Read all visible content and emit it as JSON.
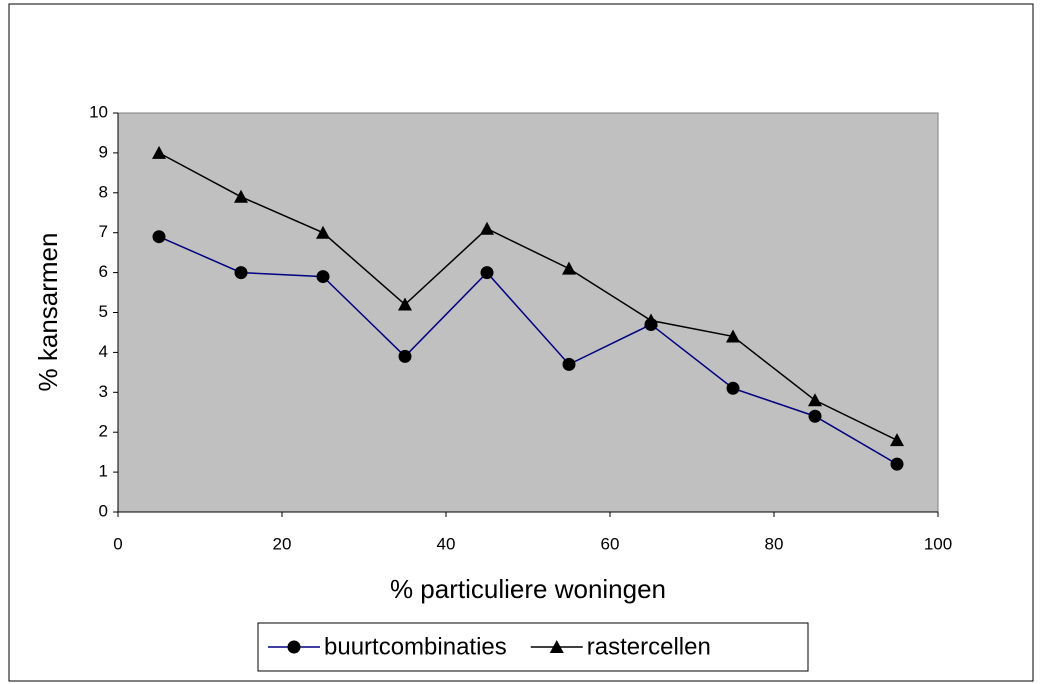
{
  "chart_data": {
    "type": "line",
    "xlabel": "% particuliere woningen",
    "ylabel": "% kansarmen",
    "x": [
      5,
      15,
      25,
      35,
      45,
      55,
      65,
      75,
      85,
      95
    ],
    "series": [
      {
        "name": "buurtcombinaties",
        "color": "#000080",
        "marker": "circle",
        "marker_color": "#000000",
        "values": [
          6.9,
          6.0,
          5.9,
          3.9,
          6.0,
          3.7,
          4.7,
          3.1,
          2.4,
          1.2
        ]
      },
      {
        "name": "rastercellen",
        "color": "#000000",
        "marker": "triangle",
        "marker_color": "#000000",
        "values": [
          9.0,
          7.9,
          7.0,
          5.2,
          7.1,
          6.1,
          4.8,
          4.4,
          2.8,
          1.8
        ]
      }
    ],
    "xlim": [
      0,
      100
    ],
    "xticks": [
      0,
      20,
      40,
      60,
      80,
      100
    ],
    "ylim": [
      0,
      10
    ],
    "yticks": [
      0,
      1,
      2,
      3,
      4,
      5,
      6,
      7,
      8,
      9,
      10
    ],
    "grid": false,
    "plot_background": "#c0c0c0",
    "legend_position": "bottom"
  }
}
